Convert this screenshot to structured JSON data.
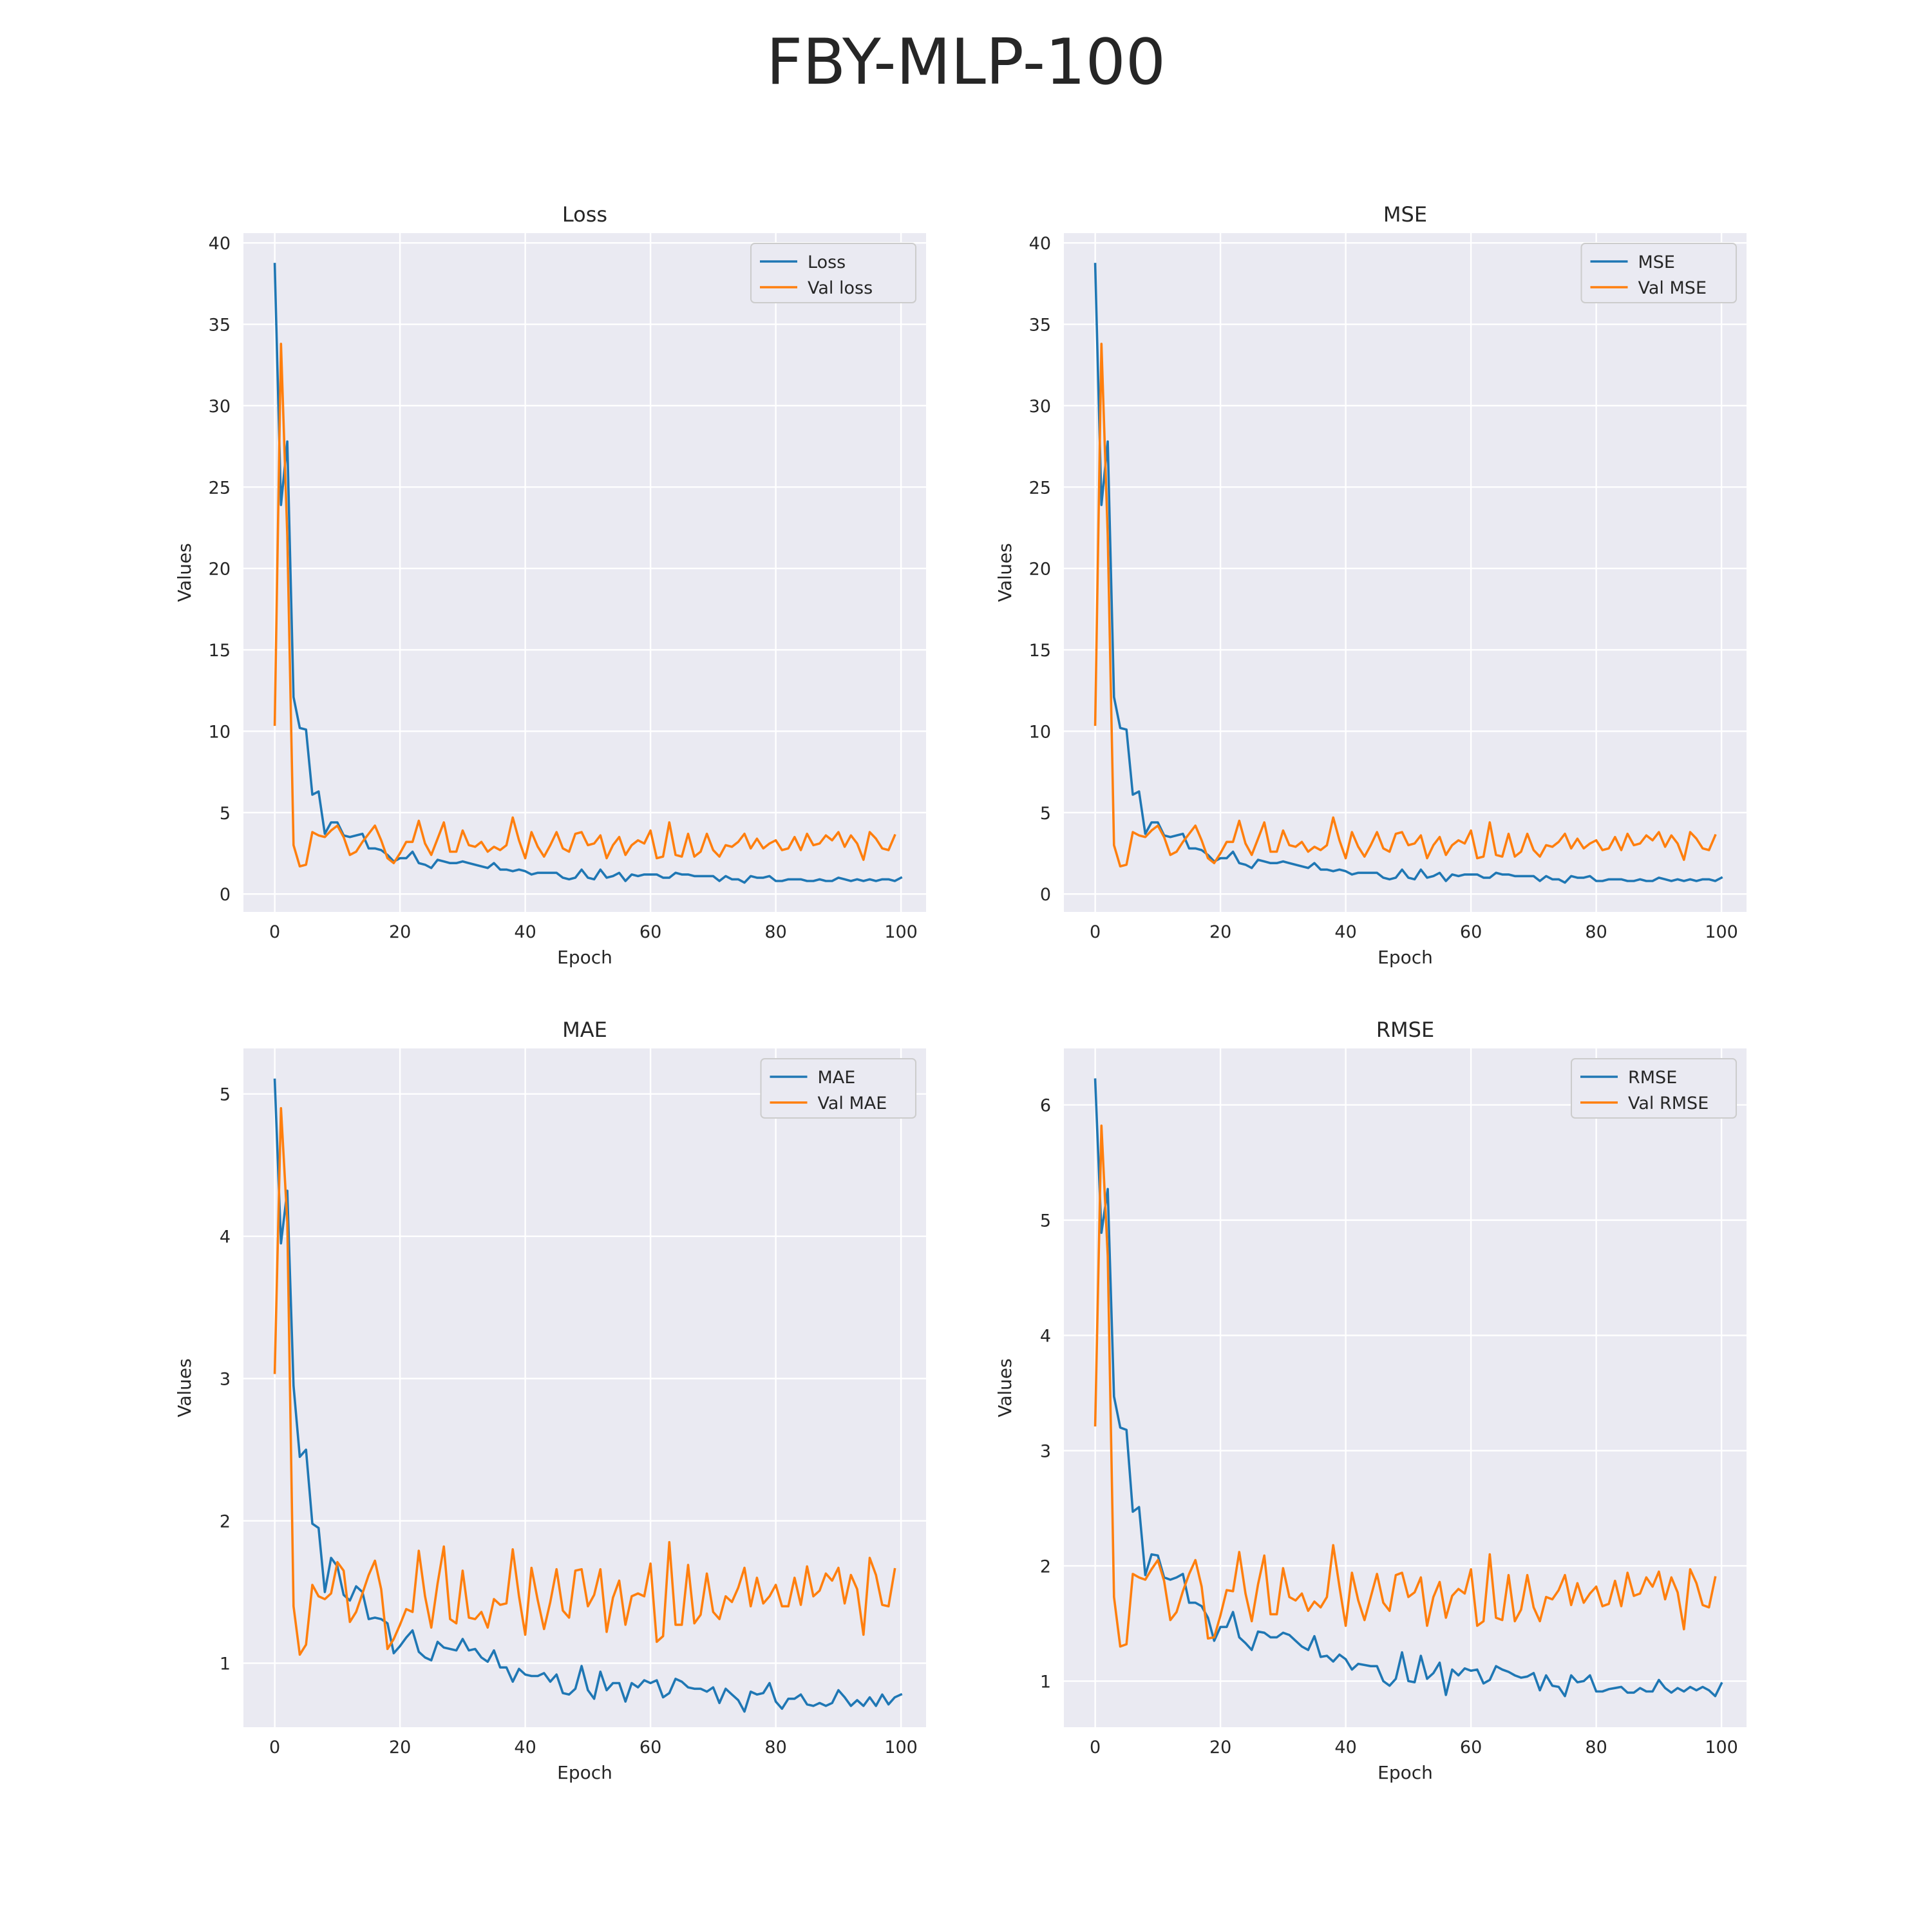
{
  "figure": {
    "title": "FBY-MLP-100"
  },
  "colors": {
    "series_0": "#1f77b4",
    "series_1": "#ff7f0e",
    "plot_background": "#eaeaf2",
    "grid": "#ffffff"
  },
  "chart_data": [
    {
      "type": "line",
      "title": "Loss",
      "xlabel": "Epoch",
      "ylabel": "Values",
      "xlim": [
        -5,
        104
      ],
      "ylim": [
        -1.1,
        40.6
      ],
      "xticks": [
        0,
        20,
        40,
        60,
        80,
        100
      ],
      "yticks": [
        0,
        5,
        10,
        15,
        20,
        25,
        30,
        35,
        40
      ],
      "grid": true,
      "legend": "top-right",
      "series": [
        {
          "name": "Loss",
          "x_start": 0,
          "values": [
            38.7,
            23.9,
            27.8,
            12.1,
            10.2,
            10.1,
            6.1,
            6.3,
            3.7,
            4.4,
            4.4,
            3.6,
            3.5,
            3.6,
            3.7,
            2.8,
            2.8,
            2.7,
            2.4,
            2.0,
            2.2,
            2.2,
            2.6,
            1.9,
            1.8,
            1.6,
            2.1,
            2.0,
            1.9,
            1.9,
            2.0,
            1.9,
            1.8,
            1.7,
            1.6,
            1.9,
            1.5,
            1.5,
            1.4,
            1.5,
            1.4,
            1.2,
            1.3,
            1.3,
            1.3,
            1.3,
            1.0,
            0.9,
            1.0,
            1.5,
            1.0,
            0.9,
            1.5,
            1.0,
            1.1,
            1.3,
            0.8,
            1.2,
            1.1,
            1.2,
            1.2,
            1.2,
            1.0,
            1.0,
            1.3,
            1.2,
            1.2,
            1.1,
            1.1,
            1.1,
            1.1,
            0.8,
            1.1,
            0.9,
            0.9,
            0.7,
            1.1,
            1.0,
            1.0,
            1.1,
            0.8,
            0.8,
            0.9,
            0.9,
            0.9,
            0.8,
            0.8,
            0.9,
            0.8,
            0.8,
            1.0,
            0.9,
            0.8,
            0.9,
            0.8,
            0.9,
            0.8,
            0.9,
            0.9,
            0.8,
            1.0
          ]
        },
        {
          "name": "Val loss",
          "x_start": 0,
          "values": [
            10.4,
            33.8,
            22.0,
            3.0,
            1.7,
            1.8,
            3.8,
            3.6,
            3.5,
            3.9,
            4.2,
            3.5,
            2.4,
            2.6,
            3.2,
            3.7,
            4.2,
            3.3,
            2.2,
            1.9,
            2.5,
            3.2,
            3.2,
            4.5,
            3.1,
            2.4,
            3.4,
            4.4,
            2.6,
            2.6,
            3.9,
            3.0,
            2.9,
            3.2,
            2.6,
            2.9,
            2.7,
            3.0,
            4.7,
            3.3,
            2.2,
            3.8,
            2.9,
            2.3,
            3.0,
            3.8,
            2.8,
            2.6,
            3.7,
            3.8,
            3.0,
            3.1,
            3.6,
            2.2,
            3.0,
            3.5,
            2.4,
            3.0,
            3.3,
            3.1,
            3.9,
            2.2,
            2.3,
            4.4,
            2.4,
            2.3,
            3.7,
            2.3,
            2.6,
            3.7,
            2.7,
            2.3,
            3.0,
            2.9,
            3.2,
            3.7,
            2.8,
            3.4,
            2.8,
            3.1,
            3.3,
            2.7,
            2.8,
            3.5,
            2.7,
            3.7,
            3.0,
            3.1,
            3.6,
            3.3,
            3.8,
            2.9,
            3.6,
            3.1,
            2.1,
            3.8,
            3.4,
            2.8,
            2.7,
            3.6
          ]
        }
      ]
    },
    {
      "type": "line",
      "title": "MSE",
      "xlabel": "Epoch",
      "ylabel": "Values",
      "xlim": [
        -5,
        104
      ],
      "ylim": [
        -1.1,
        40.6
      ],
      "xticks": [
        0,
        20,
        40,
        60,
        80,
        100
      ],
      "yticks": [
        0,
        5,
        10,
        15,
        20,
        25,
        30,
        35,
        40
      ],
      "grid": true,
      "legend": "top-right",
      "series": [
        {
          "name": "MSE",
          "x_start": 0,
          "values": [
            38.7,
            23.9,
            27.8,
            12.1,
            10.2,
            10.1,
            6.1,
            6.3,
            3.7,
            4.4,
            4.4,
            3.6,
            3.5,
            3.6,
            3.7,
            2.8,
            2.8,
            2.7,
            2.4,
            2.0,
            2.2,
            2.2,
            2.6,
            1.9,
            1.8,
            1.6,
            2.1,
            2.0,
            1.9,
            1.9,
            2.0,
            1.9,
            1.8,
            1.7,
            1.6,
            1.9,
            1.5,
            1.5,
            1.4,
            1.5,
            1.4,
            1.2,
            1.3,
            1.3,
            1.3,
            1.3,
            1.0,
            0.9,
            1.0,
            1.5,
            1.0,
            0.9,
            1.5,
            1.0,
            1.1,
            1.3,
            0.8,
            1.2,
            1.1,
            1.2,
            1.2,
            1.2,
            1.0,
            1.0,
            1.3,
            1.2,
            1.2,
            1.1,
            1.1,
            1.1,
            1.1,
            0.8,
            1.1,
            0.9,
            0.9,
            0.7,
            1.1,
            1.0,
            1.0,
            1.1,
            0.8,
            0.8,
            0.9,
            0.9,
            0.9,
            0.8,
            0.8,
            0.9,
            0.8,
            0.8,
            1.0,
            0.9,
            0.8,
            0.9,
            0.8,
            0.9,
            0.8,
            0.9,
            0.9,
            0.8,
            1.0
          ]
        },
        {
          "name": "Val MSE",
          "x_start": 0,
          "values": [
            10.4,
            33.8,
            22.0,
            3.0,
            1.7,
            1.8,
            3.8,
            3.6,
            3.5,
            3.9,
            4.2,
            3.5,
            2.4,
            2.6,
            3.2,
            3.7,
            4.2,
            3.3,
            2.2,
            1.9,
            2.5,
            3.2,
            3.2,
            4.5,
            3.1,
            2.4,
            3.4,
            4.4,
            2.6,
            2.6,
            3.9,
            3.0,
            2.9,
            3.2,
            2.6,
            2.9,
            2.7,
            3.0,
            4.7,
            3.3,
            2.2,
            3.8,
            2.9,
            2.3,
            3.0,
            3.8,
            2.8,
            2.6,
            3.7,
            3.8,
            3.0,
            3.1,
            3.6,
            2.2,
            3.0,
            3.5,
            2.4,
            3.0,
            3.3,
            3.1,
            3.9,
            2.2,
            2.3,
            4.4,
            2.4,
            2.3,
            3.7,
            2.3,
            2.6,
            3.7,
            2.7,
            2.3,
            3.0,
            2.9,
            3.2,
            3.7,
            2.8,
            3.4,
            2.8,
            3.1,
            3.3,
            2.7,
            2.8,
            3.5,
            2.7,
            3.7,
            3.0,
            3.1,
            3.6,
            3.3,
            3.8,
            2.9,
            3.6,
            3.1,
            2.1,
            3.8,
            3.4,
            2.8,
            2.7,
            3.6
          ]
        }
      ]
    },
    {
      "type": "line",
      "title": "MAE",
      "xlabel": "Epoch",
      "ylabel": "Values",
      "xlim": [
        -5,
        104
      ],
      "ylim": [
        0.55,
        5.32
      ],
      "xticks": [
        0,
        20,
        40,
        60,
        80,
        100
      ],
      "yticks": [
        1,
        2,
        3,
        4,
        5
      ],
      "grid": true,
      "legend": "top-right",
      "series": [
        {
          "name": "MAE",
          "x_start": 0,
          "values": [
            5.1,
            3.95,
            4.32,
            2.95,
            2.45,
            2.5,
            1.98,
            1.95,
            1.5,
            1.74,
            1.68,
            1.48,
            1.44,
            1.54,
            1.5,
            1.31,
            1.32,
            1.31,
            1.28,
            1.07,
            1.12,
            1.18,
            1.23,
            1.08,
            1.04,
            1.02,
            1.15,
            1.11,
            1.1,
            1.09,
            1.17,
            1.09,
            1.1,
            1.04,
            1.01,
            1.09,
            0.97,
            0.97,
            0.87,
            0.96,
            0.92,
            0.91,
            0.91,
            0.93,
            0.87,
            0.92,
            0.79,
            0.78,
            0.82,
            0.98,
            0.81,
            0.75,
            0.94,
            0.81,
            0.86,
            0.86,
            0.73,
            0.86,
            0.83,
            0.88,
            0.86,
            0.88,
            0.76,
            0.79,
            0.89,
            0.87,
            0.83,
            0.82,
            0.82,
            0.8,
            0.83,
            0.72,
            0.82,
            0.78,
            0.74,
            0.66,
            0.8,
            0.78,
            0.79,
            0.86,
            0.73,
            0.68,
            0.75,
            0.75,
            0.78,
            0.71,
            0.7,
            0.72,
            0.7,
            0.72,
            0.81,
            0.76,
            0.7,
            0.74,
            0.7,
            0.76,
            0.7,
            0.78,
            0.71,
            0.76,
            0.78
          ]
        },
        {
          "name": "Val MAE",
          "x_start": 0,
          "values": [
            3.04,
            4.9,
            4.1,
            1.4,
            1.06,
            1.13,
            1.55,
            1.47,
            1.45,
            1.49,
            1.71,
            1.65,
            1.29,
            1.36,
            1.49,
            1.62,
            1.72,
            1.52,
            1.1,
            1.17,
            1.27,
            1.38,
            1.36,
            1.79,
            1.47,
            1.25,
            1.56,
            1.82,
            1.31,
            1.28,
            1.65,
            1.32,
            1.31,
            1.36,
            1.25,
            1.45,
            1.41,
            1.42,
            1.8,
            1.47,
            1.2,
            1.67,
            1.44,
            1.24,
            1.43,
            1.66,
            1.37,
            1.32,
            1.65,
            1.66,
            1.4,
            1.48,
            1.66,
            1.22,
            1.46,
            1.58,
            1.27,
            1.47,
            1.49,
            1.47,
            1.7,
            1.15,
            1.19,
            1.85,
            1.27,
            1.27,
            1.69,
            1.28,
            1.34,
            1.63,
            1.36,
            1.31,
            1.47,
            1.43,
            1.53,
            1.67,
            1.4,
            1.6,
            1.42,
            1.47,
            1.55,
            1.4,
            1.4,
            1.6,
            1.41,
            1.68,
            1.47,
            1.51,
            1.63,
            1.58,
            1.67,
            1.42,
            1.62,
            1.52,
            1.2,
            1.74,
            1.62,
            1.41,
            1.4,
            1.66
          ]
        }
      ]
    },
    {
      "type": "line",
      "title": "RMSE",
      "xlabel": "Epoch",
      "ylabel": "Values",
      "xlim": [
        -5,
        104
      ],
      "ylim": [
        0.6,
        6.49
      ],
      "xticks": [
        0,
        20,
        40,
        60,
        80,
        100
      ],
      "yticks": [
        1,
        2,
        3,
        4,
        5,
        6
      ],
      "grid": true,
      "legend": "top-right",
      "series": [
        {
          "name": "RMSE",
          "x_start": 0,
          "values": [
            6.22,
            4.89,
            5.27,
            3.47,
            3.2,
            3.18,
            2.47,
            2.51,
            1.92,
            2.1,
            2.09,
            1.9,
            1.88,
            1.9,
            1.93,
            1.68,
            1.68,
            1.65,
            1.55,
            1.35,
            1.47,
            1.47,
            1.6,
            1.38,
            1.33,
            1.27,
            1.43,
            1.42,
            1.38,
            1.38,
            1.42,
            1.4,
            1.35,
            1.3,
            1.27,
            1.39,
            1.21,
            1.22,
            1.17,
            1.23,
            1.19,
            1.1,
            1.15,
            1.14,
            1.13,
            1.13,
            1.0,
            0.96,
            1.02,
            1.25,
            1.0,
            0.99,
            1.22,
            1.02,
            1.07,
            1.16,
            0.88,
            1.1,
            1.05,
            1.11,
            1.09,
            1.1,
            0.98,
            1.01,
            1.13,
            1.1,
            1.08,
            1.05,
            1.03,
            1.04,
            1.07,
            0.92,
            1.05,
            0.96,
            0.95,
            0.87,
            1.05,
            0.99,
            1.0,
            1.05,
            0.91,
            0.91,
            0.93,
            0.94,
            0.95,
            0.9,
            0.9,
            0.94,
            0.91,
            0.91,
            1.01,
            0.94,
            0.9,
            0.94,
            0.91,
            0.95,
            0.92,
            0.95,
            0.92,
            0.87,
            0.98
          ]
        },
        {
          "name": "Val RMSE",
          "x_start": 0,
          "values": [
            3.22,
            5.82,
            4.69,
            1.73,
            1.3,
            1.32,
            1.93,
            1.9,
            1.88,
            1.97,
            2.05,
            1.87,
            1.53,
            1.6,
            1.78,
            1.93,
            2.05,
            1.82,
            1.37,
            1.38,
            1.57,
            1.79,
            1.78,
            2.12,
            1.76,
            1.52,
            1.84,
            2.09,
            1.58,
            1.58,
            1.98,
            1.73,
            1.7,
            1.76,
            1.61,
            1.69,
            1.64,
            1.73,
            2.18,
            1.82,
            1.48,
            1.94,
            1.7,
            1.53,
            1.73,
            1.93,
            1.68,
            1.61,
            1.92,
            1.94,
            1.73,
            1.77,
            1.9,
            1.48,
            1.73,
            1.86,
            1.55,
            1.74,
            1.8,
            1.76,
            1.97,
            1.48,
            1.52,
            2.1,
            1.55,
            1.53,
            1.92,
            1.52,
            1.62,
            1.92,
            1.64,
            1.52,
            1.73,
            1.71,
            1.79,
            1.92,
            1.66,
            1.85,
            1.68,
            1.76,
            1.82,
            1.65,
            1.67,
            1.87,
            1.65,
            1.94,
            1.74,
            1.76,
            1.9,
            1.82,
            1.95,
            1.71,
            1.9,
            1.77,
            1.45,
            1.97,
            1.85,
            1.66,
            1.64,
            1.9
          ]
        }
      ]
    }
  ]
}
